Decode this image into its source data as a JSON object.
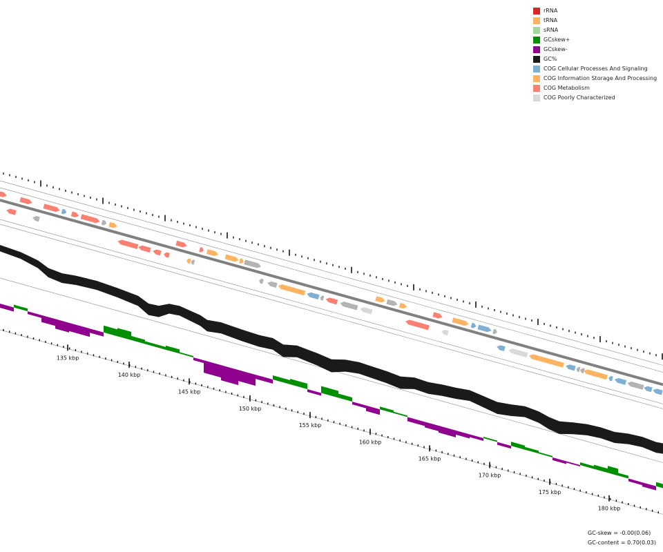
{
  "legend": {
    "items": [
      {
        "label": "rRNA",
        "color": "#d62728"
      },
      {
        "label": "tRNA",
        "color": "#fdb462"
      },
      {
        "label": "sRNA",
        "color": "#a1d99b"
      },
      {
        "label": "GCskew+",
        "color": "#008f00"
      },
      {
        "label": "GCskew-",
        "color": "#8f008f"
      },
      {
        "label": "GC%",
        "color": "#1a1a1a"
      },
      {
        "label": "COG Cellular Processes And Signaling",
        "color": "#7fb0d4"
      },
      {
        "label": "COG Information Storage And Processing",
        "color": "#fdb462"
      },
      {
        "label": "COG Metabolism",
        "color": "#fa8072"
      },
      {
        "label": "COG Poorly Characterized",
        "color": "#d9d9d9"
      }
    ]
  },
  "axis": {
    "labels": [
      "135 kbp",
      "140 kbp",
      "145 kbp",
      "150 kbp",
      "155 kbp",
      "160 kbp",
      "165 kbp",
      "170 kbp",
      "175 kbp",
      "180 kbp"
    ]
  },
  "stats": {
    "gc_skew": "GC-skew = -0.00(0.06)",
    "gc_content": "GC-content = 0.70(0.03)"
  },
  "colors": {
    "metabolism": "#fa8072",
    "info": "#fdb462",
    "cellular": "#7fb0d4",
    "poor": "#d9d9d9",
    "unassigned": "#b3b3b3",
    "gc": "#1a1a1a",
    "skew_pos": "#008f00",
    "skew_neg": "#8f008f",
    "backbone": "#808080"
  }
}
